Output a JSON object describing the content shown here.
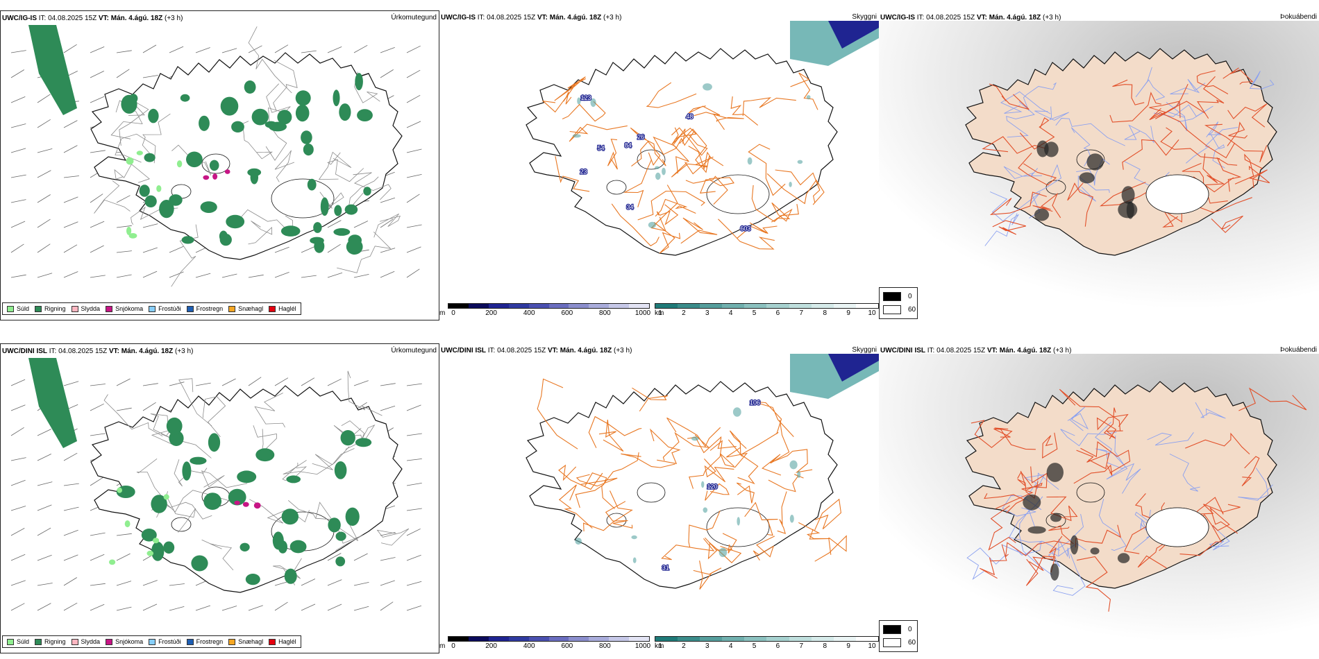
{
  "rows": [
    {
      "model": "UWC/IG-IS",
      "it_label": "IT:",
      "it": "04.08.2025 15Z",
      "vt_label": "VT:",
      "vt": "Mán. 4.ágú. 18Z",
      "lead": "(+3 h)"
    },
    {
      "model": "UWC/DINI ISL",
      "it_label": "IT:",
      "it": "04.08.2025 15Z",
      "vt_label": "VT:",
      "vt": "Mán. 4.ágú. 18Z",
      "lead": "(+3 h)"
    }
  ],
  "fields": {
    "precip_type": "Úrkomutegund",
    "visibility": "Skyggni",
    "fog": "Þokuábendi"
  },
  "precip_legend": [
    {
      "label": "Súld",
      "color": "#90ee90"
    },
    {
      "label": "Rigning",
      "color": "#2e8b57"
    },
    {
      "label": "Slydda",
      "color": "#ffb6c1"
    },
    {
      "label": "Snjókoma",
      "color": "#c71585"
    },
    {
      "label": "Frostúði",
      "color": "#87cefa"
    },
    {
      "label": "Frostregn",
      "color": "#1e5fb4"
    },
    {
      "label": "Snæhagl",
      "color": "#f5a623"
    },
    {
      "label": "Haglél",
      "color": "#e3000f"
    }
  ],
  "cbar_m": {
    "unit": "m",
    "ticks": [
      "0",
      "200",
      "400",
      "600",
      "800",
      "1000"
    ],
    "colors": [
      "#000000",
      "#0b0b5a",
      "#1f2491",
      "#2f3aa0",
      "#4a50b0",
      "#6a6dbf",
      "#8b8ecd",
      "#a9acdb",
      "#c6c8e8",
      "#e3e4f4"
    ]
  },
  "cbar_km": {
    "unit": "km",
    "ticks": [
      "1",
      "2",
      "3",
      "4",
      "5",
      "6",
      "7",
      "8",
      "9",
      "10"
    ],
    "colors": [
      "#1f7a78",
      "#3a8c8a",
      "#559e9c",
      "#70b0ae",
      "#8bc1bf",
      "#a6d1cf",
      "#bfdfdd",
      "#d6ebea",
      "#ebf5f5",
      "#ffffff"
    ]
  },
  "fog_key": [
    {
      "label": "0",
      "color": "#000000"
    },
    {
      "label": "60",
      "color": "#ffffff"
    }
  ],
  "vis_labels": [
    [
      "54",
      "84",
      "123",
      "603",
      "23",
      "26",
      "34",
      "48"
    ],
    [
      "120",
      "106",
      "31"
    ]
  ],
  "colors": {
    "rain": "#2e8b57",
    "drizzle": "#90ee90",
    "snow": "#c71585",
    "roads": "#e87722",
    "land_fog": "#f3dcc9",
    "roads_fog": "#e2502a",
    "rivers": "#8aa0f0",
    "coast": "#111111"
  }
}
